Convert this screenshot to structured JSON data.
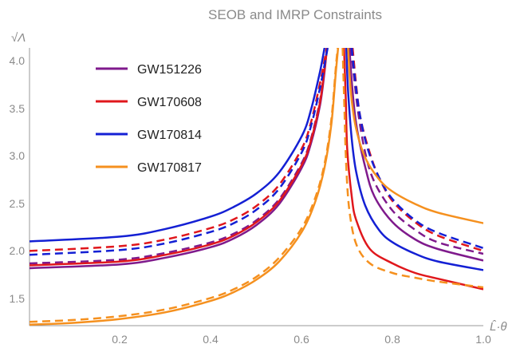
{
  "chart_data": {
    "type": "line",
    "title": "SEOB and IMRP Constraints",
    "xlabel": "L̂·θ",
    "ylabel": "√Λ",
    "xlim": [
      0,
      1.0
    ],
    "ylim": [
      1.15,
      4.05
    ],
    "x_ticks": [
      "0.2",
      "0.4",
      "0.6",
      "0.8",
      "1.0"
    ],
    "y_ticks": [
      "1.5",
      "2.0",
      "2.5",
      "3.0",
      "3.5",
      "4.0"
    ],
    "legend_position": "upper-left",
    "series": [
      {
        "name": "GW151226",
        "color": "#7f1a8c",
        "solid": {
          "left": [
            [
              0,
              1.75
            ],
            [
              0.2,
              1.79
            ],
            [
              0.3,
              1.86
            ],
            [
              0.4,
              1.97
            ],
            [
              0.45,
              2.06
            ],
            [
              0.5,
              2.2
            ],
            [
              0.55,
              2.42
            ],
            [
              0.6,
              2.8
            ],
            [
              0.62,
              3.05
            ],
            [
              0.64,
              3.45
            ],
            [
              0.65,
              3.8
            ],
            [
              0.655,
              4.05
            ]
          ],
          "right": [
            [
              0.705,
              4.05
            ],
            [
              0.71,
              3.7
            ],
            [
              0.72,
              3.25
            ],
            [
              0.74,
              2.8
            ],
            [
              0.76,
              2.5
            ],
            [
              0.8,
              2.23
            ],
            [
              0.85,
              2.05
            ],
            [
              0.9,
              1.95
            ],
            [
              1.0,
              1.83
            ]
          ]
        },
        "dashed": {
          "left": [
            [
              0,
              1.8
            ],
            [
              0.2,
              1.84
            ],
            [
              0.3,
              1.91
            ],
            [
              0.4,
              2.02
            ],
            [
              0.45,
              2.11
            ],
            [
              0.5,
              2.25
            ],
            [
              0.55,
              2.47
            ],
            [
              0.6,
              2.85
            ],
            [
              0.62,
              3.1
            ],
            [
              0.64,
              3.5
            ],
            [
              0.65,
              3.85
            ],
            [
              0.655,
              4.05
            ]
          ],
          "right": [
            [
              0.708,
              4.05
            ],
            [
              0.715,
              3.75
            ],
            [
              0.725,
              3.35
            ],
            [
              0.74,
              2.95
            ],
            [
              0.76,
              2.65
            ],
            [
              0.8,
              2.35
            ],
            [
              0.85,
              2.15
            ],
            [
              0.9,
              2.02
            ],
            [
              1.0,
              1.9
            ]
          ]
        }
      },
      {
        "name": "GW170608",
        "color": "#e0171c",
        "solid": {
          "left": [
            [
              0,
              1.78
            ],
            [
              0.2,
              1.82
            ],
            [
              0.3,
              1.89
            ],
            [
              0.4,
              2.0
            ],
            [
              0.45,
              2.09
            ],
            [
              0.5,
              2.23
            ],
            [
              0.55,
              2.45
            ],
            [
              0.6,
              2.83
            ],
            [
              0.62,
              3.08
            ],
            [
              0.64,
              3.48
            ],
            [
              0.65,
              3.83
            ],
            [
              0.656,
              4.05
            ]
          ],
          "right": [
            [
              0.693,
              4.05
            ],
            [
              0.697,
              3.5
            ],
            [
              0.7,
              3.0
            ],
            [
              0.71,
              2.5
            ],
            [
              0.72,
              2.25
            ],
            [
              0.75,
              1.95
            ],
            [
              0.8,
              1.8
            ],
            [
              0.85,
              1.7
            ],
            [
              0.9,
              1.64
            ],
            [
              1.0,
              1.53
            ]
          ]
        },
        "dashed": {
          "left": [
            [
              0,
              1.93
            ],
            [
              0.2,
              1.98
            ],
            [
              0.3,
              2.05
            ],
            [
              0.4,
              2.17
            ],
            [
              0.45,
              2.26
            ],
            [
              0.5,
              2.4
            ],
            [
              0.55,
              2.62
            ],
            [
              0.6,
              3.0
            ],
            [
              0.62,
              3.27
            ],
            [
              0.64,
              3.68
            ],
            [
              0.655,
              4.05
            ]
          ],
          "right": [
            [
              0.712,
              4.05
            ],
            [
              0.72,
              3.65
            ],
            [
              0.73,
              3.3
            ],
            [
              0.75,
              2.95
            ],
            [
              0.77,
              2.7
            ],
            [
              0.8,
              2.45
            ],
            [
              0.85,
              2.23
            ],
            [
              0.9,
              2.09
            ],
            [
              1.0,
              1.93
            ]
          ]
        }
      },
      {
        "name": "GW170814",
        "color": "#1420d4",
        "solid": {
          "left": [
            [
              0,
              2.03
            ],
            [
              0.2,
              2.08
            ],
            [
              0.3,
              2.16
            ],
            [
              0.4,
              2.29
            ],
            [
              0.45,
              2.39
            ],
            [
              0.5,
              2.53
            ],
            [
              0.55,
              2.75
            ],
            [
              0.6,
              3.13
            ],
            [
              0.62,
              3.4
            ],
            [
              0.64,
              3.8
            ],
            [
              0.65,
              4.05
            ]
          ],
          "right": [
            [
              0.698,
              4.05
            ],
            [
              0.702,
              3.6
            ],
            [
              0.71,
              3.1
            ],
            [
              0.72,
              2.75
            ],
            [
              0.74,
              2.4
            ],
            [
              0.77,
              2.15
            ],
            [
              0.8,
              2.02
            ],
            [
              0.85,
              1.9
            ],
            [
              0.9,
              1.82
            ],
            [
              1.0,
              1.73
            ]
          ]
        },
        "dashed": {
          "left": [
            [
              0,
              1.89
            ],
            [
              0.2,
              1.94
            ],
            [
              0.3,
              2.01
            ],
            [
              0.4,
              2.13
            ],
            [
              0.45,
              2.22
            ],
            [
              0.5,
              2.36
            ],
            [
              0.55,
              2.58
            ],
            [
              0.6,
              2.96
            ],
            [
              0.62,
              3.23
            ],
            [
              0.64,
              3.63
            ],
            [
              0.657,
              4.05
            ]
          ],
          "right": [
            [
              0.71,
              4.05
            ],
            [
              0.718,
              3.7
            ],
            [
              0.728,
              3.35
            ],
            [
              0.745,
              3.0
            ],
            [
              0.77,
              2.7
            ],
            [
              0.8,
              2.47
            ],
            [
              0.85,
              2.25
            ],
            [
              0.9,
              2.12
            ],
            [
              1.0,
              1.96
            ]
          ]
        }
      },
      {
        "name": "GW170817",
        "color": "#f5901e",
        "solid": {
          "left": [
            [
              0,
              1.16
            ],
            [
              0.1,
              1.18
            ],
            [
              0.2,
              1.22
            ],
            [
              0.3,
              1.29
            ],
            [
              0.4,
              1.41
            ],
            [
              0.45,
              1.5
            ],
            [
              0.5,
              1.63
            ],
            [
              0.55,
              1.82
            ],
            [
              0.6,
              2.13
            ],
            [
              0.63,
              2.45
            ],
            [
              0.65,
              2.8
            ],
            [
              0.665,
              3.25
            ],
            [
              0.675,
              3.8
            ],
            [
              0.68,
              4.05
            ]
          ],
          "right": [
            [
              0.702,
              4.05
            ],
            [
              0.705,
              3.8
            ],
            [
              0.71,
              3.5
            ],
            [
              0.72,
              3.2
            ],
            [
              0.74,
              2.9
            ],
            [
              0.77,
              2.68
            ],
            [
              0.8,
              2.55
            ],
            [
              0.85,
              2.42
            ],
            [
              0.9,
              2.33
            ],
            [
              1.0,
              2.22
            ]
          ]
        },
        "dashed": {
          "left": [
            [
              0,
              1.19
            ],
            [
              0.1,
              1.21
            ],
            [
              0.2,
              1.25
            ],
            [
              0.3,
              1.32
            ],
            [
              0.4,
              1.44
            ],
            [
              0.45,
              1.53
            ],
            [
              0.5,
              1.66
            ],
            [
              0.55,
              1.86
            ],
            [
              0.6,
              2.17
            ],
            [
              0.63,
              2.49
            ],
            [
              0.65,
              2.84
            ],
            [
              0.665,
              3.3
            ],
            [
              0.675,
              3.85
            ],
            [
              0.679,
              4.05
            ]
          ],
          "right": [
            [
              0.69,
              4.05
            ],
            [
              0.694,
              3.4
            ],
            [
              0.698,
              2.8
            ],
            [
              0.705,
              2.35
            ],
            [
              0.72,
              2.0
            ],
            [
              0.75,
              1.8
            ],
            [
              0.8,
              1.7
            ],
            [
              0.85,
              1.65
            ],
            [
              0.9,
              1.61
            ],
            [
              1.0,
              1.55
            ]
          ]
        }
      }
    ]
  }
}
